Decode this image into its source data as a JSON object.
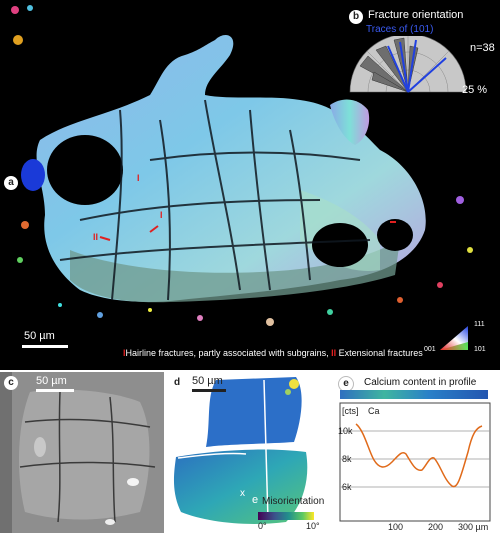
{
  "panel_a": {
    "label": "a",
    "scalebar_text": "50 µm",
    "legend_hairline": "Hairline fractures, partly associated with  subgrains,",
    "legend_extensional": "Extensional fractures",
    "marker_single": "I",
    "marker_double": "II",
    "ipf_key": {
      "top": "111",
      "left": "001",
      "right": "101"
    },
    "colors": {
      "marker": "#e02020",
      "background": "#000000"
    }
  },
  "panel_b": {
    "label": "b",
    "title": "Fracture orientation",
    "traces_label": "Traces of (101)",
    "n_label": "n=38",
    "percent_label": "25 %",
    "colors": {
      "rose": "#808080",
      "traces": "#2040e0"
    }
  },
  "panel_c": {
    "label": "c",
    "scalebar_text": "50 µm"
  },
  "panel_d": {
    "label": "d",
    "scalebar_text": "50 µm",
    "point_x": "x",
    "point_e": "e",
    "misorientation_label": "Misorientation",
    "scale_min": "0°",
    "scale_max": "10°"
  },
  "panel_e": {
    "label": "e",
    "title": "Calcium content in profile",
    "y_unit": "[cts]",
    "element": "Ca",
    "y_ticks": [
      "10k",
      "8k",
      "6k"
    ],
    "x_ticks": [
      "100",
      "200",
      "300 µm"
    ],
    "colors": {
      "profile": "#e06a1a"
    }
  }
}
